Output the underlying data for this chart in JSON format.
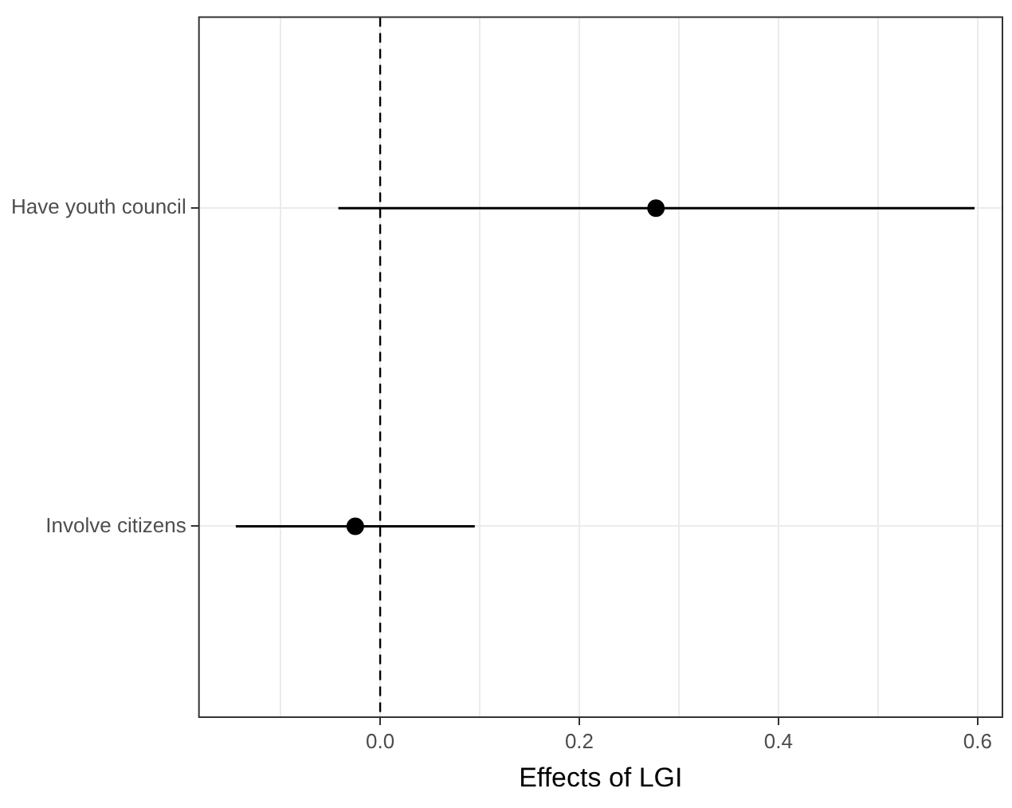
{
  "chart_data": {
    "type": "scatter",
    "orientation": "horizontal",
    "xlabel": "Effects of LGI",
    "categories": [
      "Have youth council",
      "Involve citizens"
    ],
    "series": [
      {
        "color": "#000000",
        "values": [
          0.277,
          -0.025
        ],
        "errors": [
          [
            -0.042,
            0.597
          ],
          [
            -0.145,
            0.095
          ]
        ]
      }
    ],
    "xlim": [
      -0.182,
      0.625
    ],
    "xticks": [
      {
        "value": -0.1,
        "label": null
      },
      {
        "value": 0,
        "label": "0.0"
      },
      {
        "value": 0.1,
        "label": null
      },
      {
        "value": 0.2,
        "label": "0.2"
      },
      {
        "value": 0.3,
        "label": null
      },
      {
        "value": 0.4,
        "label": "0.4"
      },
      {
        "value": 0.5,
        "label": null
      },
      {
        "value": 0.6,
        "label": "0.6"
      }
    ],
    "ref_lines": [
      {
        "axis": "x",
        "value": 0,
        "color": "#000000",
        "line_style": "dashed"
      }
    ],
    "grid": true,
    "marker": "circle",
    "legend": false
  }
}
